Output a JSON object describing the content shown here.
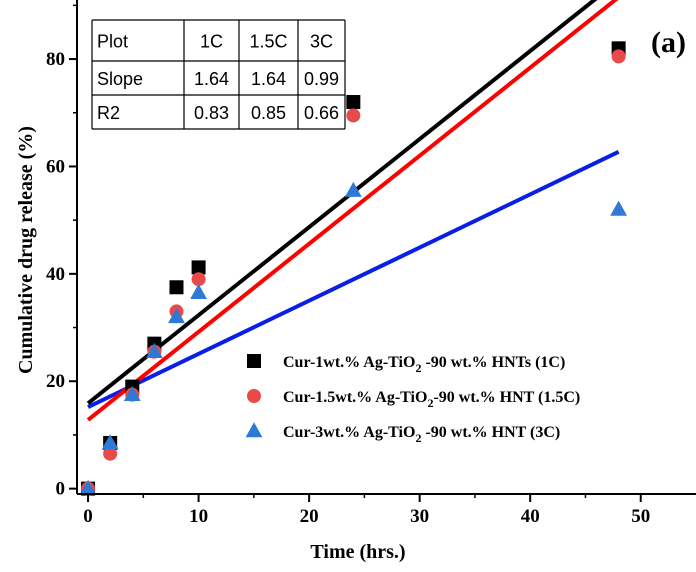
{
  "chart_data": {
    "type": "scatter",
    "panel_label": "(a)",
    "xlabel": "Time (hrs.)",
    "ylabel": "Cumulative drug release (%)",
    "xlim": [
      -1,
      55
    ],
    "ylim": [
      -1,
      91
    ],
    "xticks": [
      0,
      10,
      20,
      30,
      40,
      50
    ],
    "yticks": [
      0,
      20,
      40,
      60,
      80
    ],
    "grid": false,
    "legend_position": "lower-right",
    "series": [
      {
        "name_parts": [
          "Cur-1wt.% Ag-TiO",
          "2",
          " -90 wt.% HNTs  (1C)"
        ],
        "marker": "square",
        "color": "#000000",
        "x": [
          0,
          2,
          4,
          6,
          8,
          10,
          24,
          48
        ],
        "y": [
          0,
          8.5,
          19,
          27,
          37.5,
          41.2,
          72,
          82
        ],
        "fit": {
          "slope": 1.64,
          "intercept": 15.9,
          "line_color": "#000000"
        }
      },
      {
        "name_parts": [
          "Cur-1.5wt.% Ag-TiO",
          "2",
          "-90 wt.% HNT (1.5C)"
        ],
        "marker": "circle",
        "color": "#e84a4a",
        "x": [
          0,
          2,
          4,
          6,
          8,
          10,
          24,
          48
        ],
        "y": [
          0,
          6.5,
          17.5,
          25.5,
          33,
          39,
          69.5,
          80.5
        ],
        "fit": {
          "slope": 1.64,
          "intercept": 12.8,
          "line_color": "#ff0000"
        }
      },
      {
        "name_parts": [
          "Cur-3wt.% Ag-TiO",
          "2",
          " -90 wt.% HNT  (3C)"
        ],
        "marker": "triangle",
        "color": "#2e79d6",
        "x": [
          0,
          2,
          4,
          6,
          8,
          10,
          24,
          48
        ],
        "y": [
          0,
          8.5,
          17.5,
          25.5,
          32,
          36.5,
          55.5,
          52
        ],
        "fit": {
          "slope": 0.99,
          "intercept": 15.2,
          "line_color": "#0a1fe6"
        }
      }
    ],
    "table": {
      "rows": [
        [
          "Plot",
          "1C",
          "1.5C",
          "3C"
        ],
        [
          "Slope",
          "1.64",
          "1.64",
          "0.99"
        ],
        [
          "R2",
          "0.83",
          "0.85",
          "0.66"
        ]
      ]
    }
  }
}
